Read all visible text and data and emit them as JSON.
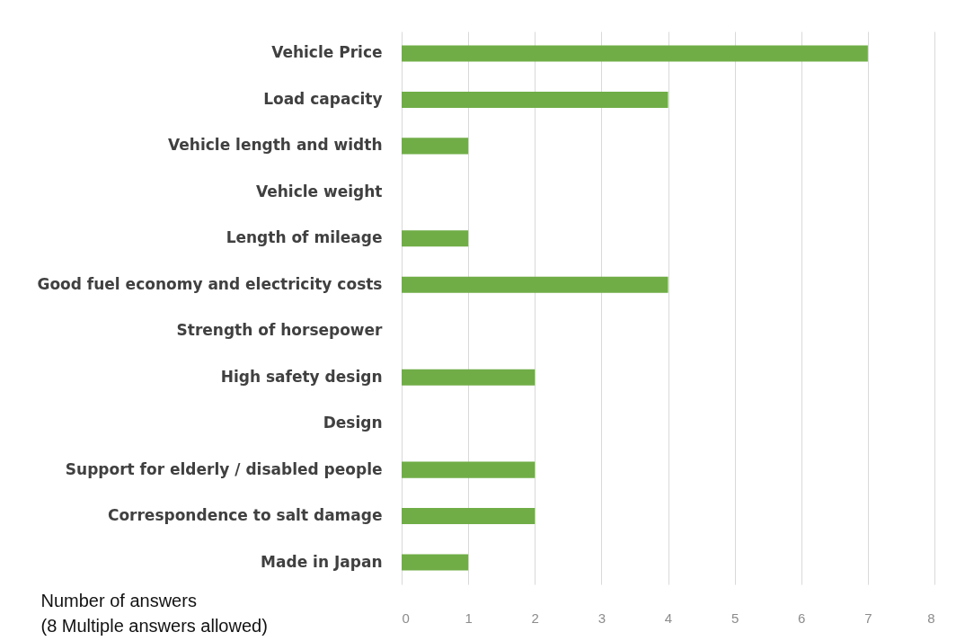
{
  "chart_data": {
    "type": "bar",
    "orientation": "horizontal",
    "xlabel": [
      "Number of answers",
      "(8 Multiple answers allowed)"
    ],
    "categories": [
      "Vehicle Price",
      "Load capacity",
      "Vehicle length and width",
      "Vehicle weight",
      "Length of mileage",
      "Good fuel economy and electricity costs",
      "Strength of horsepower",
      "High safety design",
      "Design",
      "Support for elderly / disabled people",
      "Correspondence to salt damage",
      "Made in Japan"
    ],
    "values": [
      7,
      4,
      1,
      0,
      1,
      4,
      0,
      2,
      0,
      2,
      2,
      1
    ],
    "color": "#70ad47",
    "xlim": [
      0,
      8
    ],
    "xticks": [
      0,
      1,
      2,
      3,
      4,
      5,
      6,
      7,
      8
    ],
    "grid": "x"
  }
}
